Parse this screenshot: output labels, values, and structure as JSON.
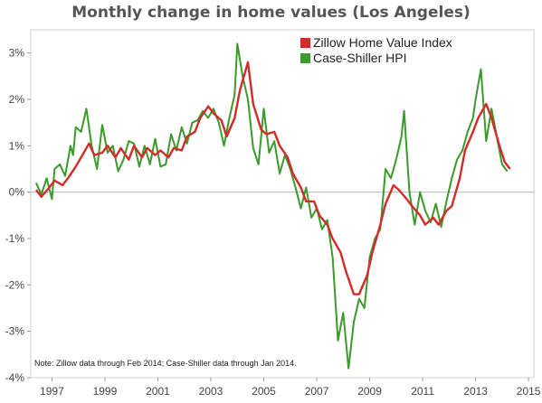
{
  "chart_data": {
    "type": "line",
    "title": "Monthly change in home values (Los Angeles)",
    "xlabel": "",
    "ylabel": "",
    "xlim": [
      1996.2,
      2015.2
    ],
    "ylim": [
      -4.0,
      3.5
    ],
    "x_ticks": [
      "1997",
      "1999",
      "2001",
      "2003",
      "2005",
      "2007",
      "2009",
      "2011",
      "2013",
      "2015"
    ],
    "y_ticks": [
      "3%",
      "2%",
      "1%",
      "0%",
      "-1%",
      "-2%",
      "-3%",
      "-4%"
    ],
    "grid": false,
    "zero_line": true,
    "legend_position": "top-right",
    "note": "Note: Zillow data through Feb 2014; Case-Shiller data through Jan 2014.",
    "series": [
      {
        "name": "Zillow Home Value Index",
        "color": "#d42a2a",
        "points": [
          [
            1996.4,
            0.05
          ],
          [
            1996.6,
            -0.1
          ],
          [
            1996.9,
            0.1
          ],
          [
            1997.1,
            0.25
          ],
          [
            1997.4,
            0.15
          ],
          [
            1997.6,
            0.3
          ],
          [
            1997.9,
            0.55
          ],
          [
            1998.1,
            0.75
          ],
          [
            1998.4,
            1.05
          ],
          [
            1998.6,
            0.8
          ],
          [
            1998.9,
            0.85
          ],
          [
            1999.1,
            1.0
          ],
          [
            1999.4,
            0.75
          ],
          [
            1999.6,
            0.95
          ],
          [
            1999.9,
            0.7
          ],
          [
            2000.1,
            1.0
          ],
          [
            2000.4,
            0.75
          ],
          [
            2000.6,
            0.95
          ],
          [
            2000.9,
            0.8
          ],
          [
            2001.1,
            0.9
          ],
          [
            2001.4,
            0.75
          ],
          [
            2001.6,
            0.95
          ],
          [
            2001.9,
            0.9
          ],
          [
            2002.1,
            1.2
          ],
          [
            2002.4,
            1.3
          ],
          [
            2002.6,
            1.6
          ],
          [
            2002.9,
            1.85
          ],
          [
            2003.1,
            1.7
          ],
          [
            2003.4,
            1.55
          ],
          [
            2003.6,
            1.2
          ],
          [
            2003.9,
            1.6
          ],
          [
            2004.1,
            2.2
          ],
          [
            2004.4,
            2.8
          ],
          [
            2004.6,
            1.9
          ],
          [
            2004.9,
            1.35
          ],
          [
            2005.1,
            1.25
          ],
          [
            2005.4,
            1.3
          ],
          [
            2005.6,
            1.0
          ],
          [
            2005.9,
            0.75
          ],
          [
            2006.1,
            0.4
          ],
          [
            2006.4,
            0.1
          ],
          [
            2006.6,
            -0.2
          ],
          [
            2006.9,
            -0.2
          ],
          [
            2007.1,
            -0.5
          ],
          [
            2007.4,
            -0.7
          ],
          [
            2007.6,
            -1.0
          ],
          [
            2007.9,
            -1.3
          ],
          [
            2008.1,
            -1.7
          ],
          [
            2008.4,
            -2.2
          ],
          [
            2008.6,
            -2.2
          ],
          [
            2008.9,
            -1.8
          ],
          [
            2009.1,
            -1.3
          ],
          [
            2009.4,
            -0.7
          ],
          [
            2009.6,
            -0.25
          ],
          [
            2009.9,
            0.15
          ],
          [
            2010.1,
            0.05
          ],
          [
            2010.4,
            -0.15
          ],
          [
            2010.6,
            -0.3
          ],
          [
            2010.9,
            -0.5
          ],
          [
            2011.1,
            -0.7
          ],
          [
            2011.4,
            -0.55
          ],
          [
            2011.6,
            -0.7
          ],
          [
            2011.9,
            -0.4
          ],
          [
            2012.1,
            -0.3
          ],
          [
            2012.4,
            0.3
          ],
          [
            2012.6,
            0.9
          ],
          [
            2012.9,
            1.3
          ],
          [
            2013.1,
            1.6
          ],
          [
            2013.4,
            1.9
          ],
          [
            2013.6,
            1.6
          ],
          [
            2013.9,
            1.0
          ],
          [
            2014.1,
            0.65
          ],
          [
            2014.3,
            0.5
          ]
        ]
      },
      {
        "name": "Case-Shiller HPI",
        "color": "#3a9a2a",
        "points": [
          [
            1996.4,
            0.2
          ],
          [
            1996.6,
            -0.05
          ],
          [
            1996.8,
            0.3
          ],
          [
            1997.0,
            -0.15
          ],
          [
            1997.1,
            0.5
          ],
          [
            1997.3,
            0.6
          ],
          [
            1997.5,
            0.35
          ],
          [
            1997.7,
            1.0
          ],
          [
            1997.8,
            0.8
          ],
          [
            1997.9,
            1.4
          ],
          [
            1998.1,
            1.3
          ],
          [
            1998.3,
            1.8
          ],
          [
            1998.5,
            1.0
          ],
          [
            1998.7,
            0.5
          ],
          [
            1998.9,
            1.45
          ],
          [
            1999.1,
            0.85
          ],
          [
            1999.3,
            1.0
          ],
          [
            1999.5,
            0.45
          ],
          [
            1999.7,
            0.7
          ],
          [
            1999.9,
            1.1
          ],
          [
            2000.1,
            1.05
          ],
          [
            2000.3,
            0.55
          ],
          [
            2000.5,
            1.0
          ],
          [
            2000.7,
            0.6
          ],
          [
            2000.9,
            1.15
          ],
          [
            2001.1,
            0.55
          ],
          [
            2001.3,
            0.6
          ],
          [
            2001.5,
            1.25
          ],
          [
            2001.7,
            0.9
          ],
          [
            2001.9,
            1.4
          ],
          [
            2002.1,
            1.05
          ],
          [
            2002.3,
            1.5
          ],
          [
            2002.5,
            1.55
          ],
          [
            2002.7,
            1.75
          ],
          [
            2002.9,
            1.6
          ],
          [
            2003.1,
            1.8
          ],
          [
            2003.3,
            1.5
          ],
          [
            2003.5,
            1.0
          ],
          [
            2003.7,
            1.6
          ],
          [
            2003.9,
            2.1
          ],
          [
            2004.0,
            3.2
          ],
          [
            2004.2,
            2.5
          ],
          [
            2004.4,
            2.0
          ],
          [
            2004.6,
            0.95
          ],
          [
            2004.8,
            0.6
          ],
          [
            2005.0,
            1.8
          ],
          [
            2005.2,
            0.85
          ],
          [
            2005.4,
            1.1
          ],
          [
            2005.6,
            0.4
          ],
          [
            2005.8,
            0.8
          ],
          [
            2006.0,
            0.5
          ],
          [
            2006.2,
            0.1
          ],
          [
            2006.4,
            -0.35
          ],
          [
            2006.6,
            0.1
          ],
          [
            2006.8,
            -0.55
          ],
          [
            2007.0,
            -0.35
          ],
          [
            2007.2,
            -0.8
          ],
          [
            2007.4,
            -0.6
          ],
          [
            2007.6,
            -1.4
          ],
          [
            2007.8,
            -3.2
          ],
          [
            2008.0,
            -2.6
          ],
          [
            2008.2,
            -3.8
          ],
          [
            2008.4,
            -2.8
          ],
          [
            2008.6,
            -2.3
          ],
          [
            2008.8,
            -2.5
          ],
          [
            2009.0,
            -1.4
          ],
          [
            2009.2,
            -1.0
          ],
          [
            2009.4,
            -0.8
          ],
          [
            2009.6,
            0.5
          ],
          [
            2009.8,
            0.3
          ],
          [
            2010.0,
            0.7
          ],
          [
            2010.2,
            1.2
          ],
          [
            2010.3,
            1.75
          ],
          [
            2010.5,
            0.0
          ],
          [
            2010.7,
            -0.7
          ],
          [
            2010.9,
            0.0
          ],
          [
            2011.1,
            -0.4
          ],
          [
            2011.3,
            -0.65
          ],
          [
            2011.5,
            -0.25
          ],
          [
            2011.7,
            -0.75
          ],
          [
            2011.9,
            -0.2
          ],
          [
            2012.1,
            0.3
          ],
          [
            2012.3,
            0.7
          ],
          [
            2012.5,
            0.9
          ],
          [
            2012.7,
            1.3
          ],
          [
            2012.9,
            1.6
          ],
          [
            2013.0,
            2.0
          ],
          [
            2013.2,
            2.65
          ],
          [
            2013.4,
            1.1
          ],
          [
            2013.6,
            1.8
          ],
          [
            2013.8,
            1.2
          ],
          [
            2014.0,
            0.6
          ],
          [
            2014.2,
            0.45
          ]
        ]
      }
    ]
  }
}
